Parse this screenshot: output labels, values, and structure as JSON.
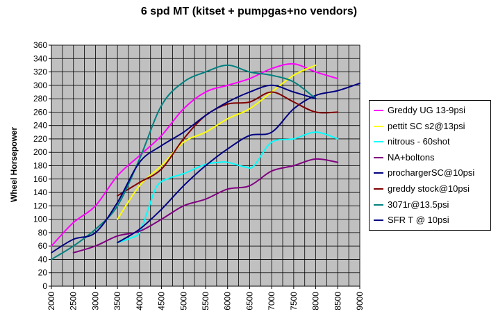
{
  "chart_data": {
    "type": "line",
    "title": "6 spd MT (kitset + pumpgas+no vendors)",
    "xlabel": "",
    "ylabel": "Wheel Horsepower",
    "xlim": [
      2000,
      9000
    ],
    "ylim": [
      0,
      360
    ],
    "x_ticks": [
      "2000",
      "2500",
      "3000",
      "3500",
      "4000",
      "4500",
      "5000",
      "5500",
      "6000",
      "6500",
      "7000",
      "7500",
      "8000",
      "8500",
      "9000"
    ],
    "y_ticks": [
      "0",
      "20",
      "40",
      "60",
      "80",
      "100",
      "120",
      "140",
      "160",
      "180",
      "200",
      "220",
      "240",
      "260",
      "280",
      "300",
      "320",
      "340",
      "360"
    ],
    "grid": true,
    "plot_background": "#c0c0c0",
    "legend_position": "right",
    "series": [
      {
        "name": "Greddy UG 13-9psi",
        "color": "#ff00ff",
        "points": [
          [
            2000,
            60
          ],
          [
            2500,
            95
          ],
          [
            3000,
            120
          ],
          [
            3500,
            165
          ],
          [
            4000,
            195
          ],
          [
            4500,
            225
          ],
          [
            5000,
            265
          ],
          [
            5500,
            290
          ],
          [
            6000,
            300
          ],
          [
            6500,
            310
          ],
          [
            7000,
            325
          ],
          [
            7500,
            332
          ],
          [
            8000,
            320
          ],
          [
            8500,
            310
          ]
        ]
      },
      {
        "name": "pettit SC s2@13psi",
        "color": "#ffff00",
        "points": [
          [
            3500,
            100
          ],
          [
            4000,
            150
          ],
          [
            4500,
            180
          ],
          [
            5000,
            215
          ],
          [
            5500,
            230
          ],
          [
            6000,
            250
          ],
          [
            6500,
            265
          ],
          [
            7000,
            290
          ],
          [
            7500,
            315
          ],
          [
            8000,
            330
          ]
        ]
      },
      {
        "name": "nitrous - 60shot",
        "color": "#00ffff",
        "points": [
          [
            3500,
            65
          ],
          [
            3800,
            72
          ],
          [
            4000,
            80
          ],
          [
            4200,
            115
          ],
          [
            4400,
            150
          ],
          [
            4700,
            162
          ],
          [
            5000,
            168
          ],
          [
            5500,
            182
          ],
          [
            5800,
            185
          ],
          [
            6000,
            185
          ],
          [
            6400,
            178
          ],
          [
            6600,
            180
          ],
          [
            7000,
            215
          ],
          [
            7500,
            220
          ],
          [
            8000,
            230
          ],
          [
            8500,
            220
          ]
        ]
      },
      {
        "name": "NA+boltons",
        "color": "#800080",
        "points": [
          [
            2500,
            50
          ],
          [
            3000,
            60
          ],
          [
            3500,
            75
          ],
          [
            4000,
            82
          ],
          [
            4500,
            100
          ],
          [
            5000,
            120
          ],
          [
            5500,
            130
          ],
          [
            6000,
            145
          ],
          [
            6500,
            150
          ],
          [
            7000,
            172
          ],
          [
            7500,
            180
          ],
          [
            8000,
            190
          ],
          [
            8500,
            185
          ]
        ]
      },
      {
        "name": "prochargerSC@10psi",
        "color": "#000080",
        "points": [
          [
            3500,
            65
          ],
          [
            4000,
            85
          ],
          [
            4500,
            115
          ],
          [
            5000,
            150
          ],
          [
            5500,
            180
          ],
          [
            6000,
            205
          ],
          [
            6500,
            225
          ],
          [
            7000,
            230
          ],
          [
            7500,
            265
          ],
          [
            8000,
            285
          ],
          [
            8500,
            292
          ],
          [
            9000,
            303
          ]
        ]
      },
      {
        "name": "greddy stock@10psi",
        "color": "#800000",
        "points": [
          [
            3500,
            135
          ],
          [
            4000,
            155
          ],
          [
            4500,
            175
          ],
          [
            5000,
            220
          ],
          [
            5500,
            255
          ],
          [
            6000,
            272
          ],
          [
            6500,
            275
          ],
          [
            7000,
            290
          ],
          [
            7500,
            275
          ],
          [
            8000,
            260
          ],
          [
            8500,
            260
          ]
        ]
      },
      {
        "name": "3071r@13.5psi",
        "color": "#008080",
        "points": [
          [
            2000,
            40
          ],
          [
            2500,
            60
          ],
          [
            3000,
            85
          ],
          [
            3500,
            120
          ],
          [
            4000,
            190
          ],
          [
            4500,
            270
          ],
          [
            5000,
            305
          ],
          [
            5500,
            320
          ],
          [
            6000,
            330
          ],
          [
            6500,
            320
          ],
          [
            7000,
            315
          ],
          [
            7500,
            305
          ],
          [
            8000,
            280
          ]
        ]
      },
      {
        "name": "SFR T @ 10psi",
        "color": "#000080",
        "points": [
          [
            2000,
            50
          ],
          [
            2500,
            70
          ],
          [
            3000,
            80
          ],
          [
            3500,
            125
          ],
          [
            4000,
            185
          ],
          [
            4500,
            210
          ],
          [
            5000,
            230
          ],
          [
            5500,
            255
          ],
          [
            6000,
            275
          ],
          [
            6500,
            290
          ],
          [
            7000,
            300
          ],
          [
            7500,
            290
          ],
          [
            8000,
            280
          ]
        ]
      }
    ]
  }
}
